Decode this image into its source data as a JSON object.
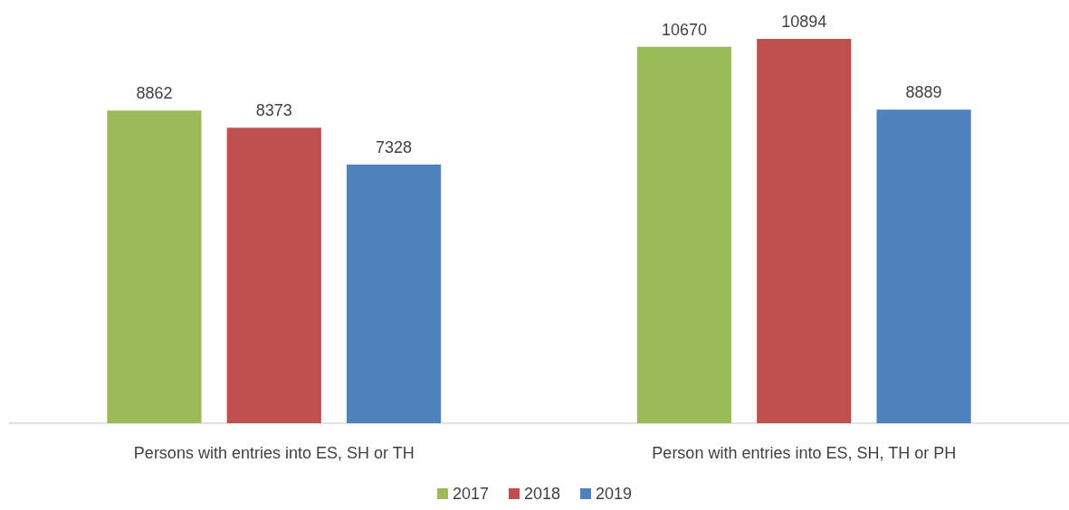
{
  "chart_data": {
    "type": "bar",
    "categories": [
      "Persons with entries into ES, SH or TH",
      "Person with entries into ES, SH, TH or PH"
    ],
    "series": [
      {
        "name": "2017",
        "color": "#9bbb59",
        "values": [
          8862,
          10670
        ]
      },
      {
        "name": "2018",
        "color": "#c0504d",
        "values": [
          8373,
          10894
        ]
      },
      {
        "name": "2019",
        "color": "#4f81bd",
        "values": [
          7328,
          8889
        ]
      }
    ],
    "data_labels": true,
    "legend": "bottom",
    "grid": false
  }
}
